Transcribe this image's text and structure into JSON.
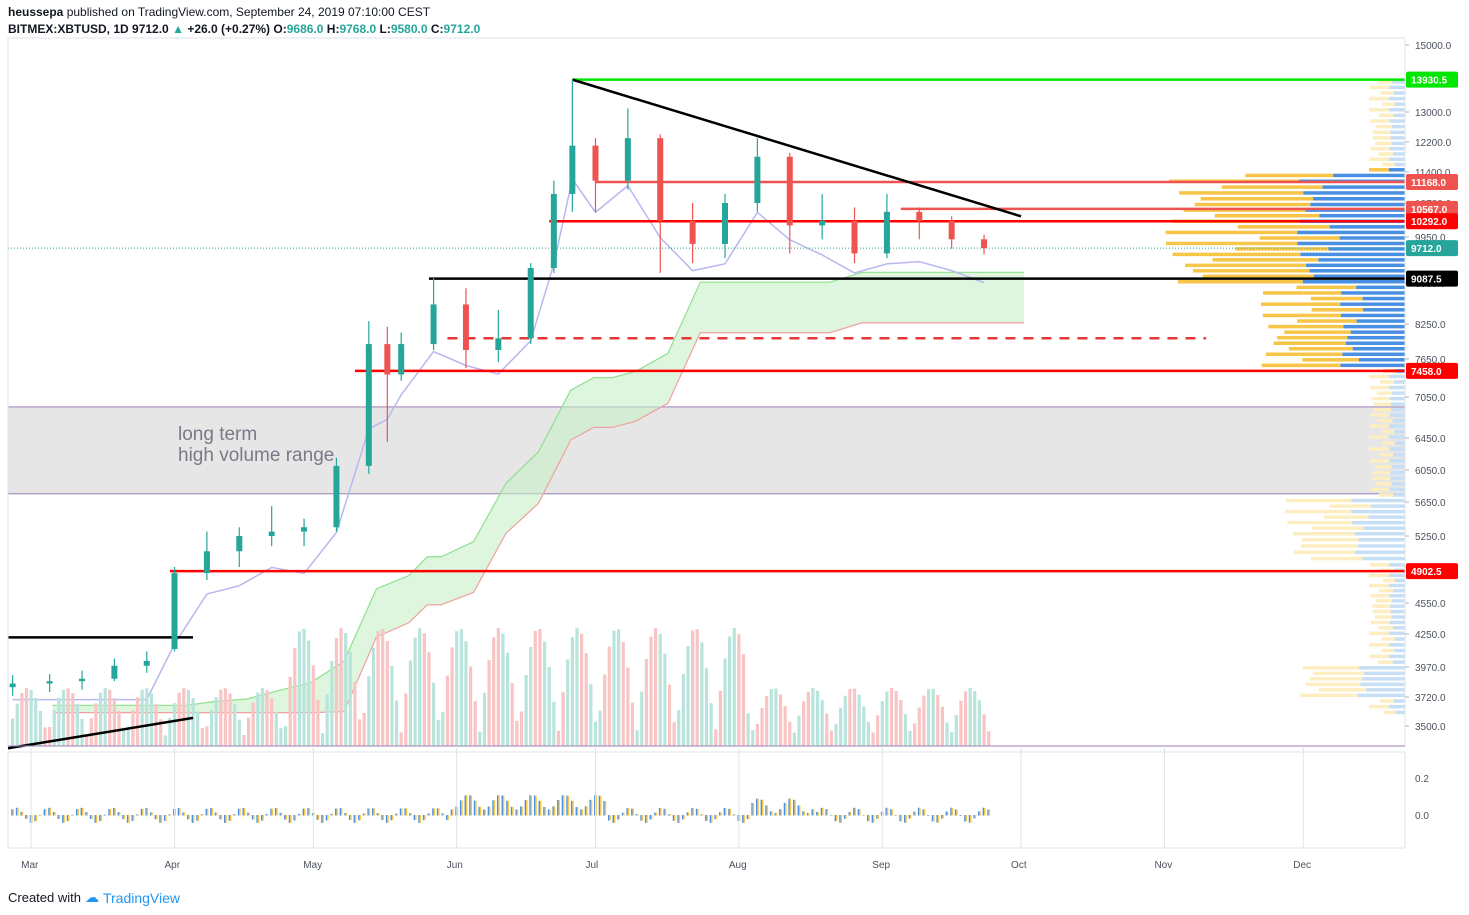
{
  "header": {
    "publisher": "heussepa",
    "published_text": "published on TradingView.com, September 24, 2019 07:10:00 CEST",
    "symbol": "BITMEX:XBTUSD, 1D",
    "last": "9712.0",
    "change": "+26.0 (+0.27%)",
    "open_label": "O:",
    "open": "9686.0",
    "high_label": "H:",
    "high": "9768.0",
    "low_label": "L:",
    "low": "9580.0",
    "close_label": "C:",
    "close": "9712.0"
  },
  "footer": {
    "created_with": "Created with",
    "brand": "TradingView"
  },
  "colors": {
    "bull": "#26a69a",
    "bear": "#ef5350",
    "green_line": "#00e600",
    "red_line": "#ff0000",
    "black_line": "#000000",
    "range_fill": "#e6e6e6",
    "range_border": "#9b7fb4",
    "cloud_green": "#c8eec8",
    "cloud_red": "#ffd6d6",
    "base_line": "#b8b8f0",
    "vp_up": "#f7c548",
    "vp_down": "#4a90e2",
    "osc_up": "#f7c548",
    "osc_down": "#4a90e2"
  },
  "annotations": {
    "range_text_1": "long term",
    "range_text_2": "high volume range"
  },
  "chart_data": {
    "type": "candlestick",
    "x_ticks": [
      "Mar",
      "Apr",
      "May",
      "Jun",
      "Jul",
      "Aug",
      "Sep",
      "Oct",
      "Nov",
      "Dec"
    ],
    "y_ticks": [
      15000,
      13000,
      12200,
      11400,
      10700,
      9950,
      9000,
      8250,
      7650,
      7050,
      6450,
      6050,
      5650,
      5250,
      4950,
      4550,
      4250,
      3970,
      3720,
      3500
    ],
    "y_tick_labels": [
      "15000.0",
      "13000.0",
      "12200.0",
      "11400.0",
      "10700.0",
      "9950.0",
      "9000.0",
      "8250.0",
      "7650.0",
      "7050.0",
      "6450.0",
      "6050.0",
      "5650.0",
      "5250.0",
      "4950.0",
      "4550.0",
      "4250.0",
      "3970.0",
      "3720.0",
      "3500.0"
    ],
    "price_tags": [
      {
        "value": 13930.5,
        "label": "13930.5",
        "color": "#00e600"
      },
      {
        "value": 11168.0,
        "label": "11168.0",
        "color": "#ef5350"
      },
      {
        "value": 10567.0,
        "label": "10567.0",
        "color": "#ef5350"
      },
      {
        "value": 10292.0,
        "label": "10292.0",
        "color": "#ff0000"
      },
      {
        "value": 9712.0,
        "label": "9712.0",
        "color": "#26a69a"
      },
      {
        "value": 9087.5,
        "label": "9087.5",
        "color": "#000000"
      },
      {
        "value": 7458.0,
        "label": "7458.0",
        "color": "#ff0000"
      },
      {
        "value": 4902.5,
        "label": "4902.5",
        "color": "#ff0000"
      }
    ],
    "osc_ticks": [
      0.2,
      0.0
    ],
    "osc_tick_labels": [
      "0.2",
      "0.0"
    ],
    "horizontal_lines": [
      {
        "value": 13930.5,
        "from": "2019-06-26",
        "to": "end",
        "color": "#00e600",
        "style": "solid"
      },
      {
        "value": 11168.0,
        "from": "2019-07-01",
        "to": "end",
        "color": "#ef5350",
        "style": "solid"
      },
      {
        "value": 10567.0,
        "from": "2019-09-05",
        "to": "end",
        "color": "#ef5350",
        "style": "solid"
      },
      {
        "value": 10292.0,
        "from": "2019-06-21",
        "to": "end",
        "color": "#ff0000",
        "style": "solid"
      },
      {
        "value": 9087.5,
        "from": "2019-05-26",
        "to": "end",
        "color": "#000000",
        "style": "solid"
      },
      {
        "value": 8000.0,
        "from": "2019-05-30",
        "to": "2019-11-10",
        "color": "#e53935",
        "style": "dashed"
      },
      {
        "value": 7458.0,
        "from": "2019-05-10",
        "to": "end",
        "color": "#ff0000",
        "style": "solid"
      },
      {
        "value": 4902.5,
        "from": "2019-03-31",
        "to": "end",
        "color": "#ff0000",
        "style": "solid"
      },
      {
        "value": 4220.0,
        "from": "2019-02-24",
        "to": "2019-04-05",
        "color": "#000000",
        "style": "solid"
      }
    ],
    "trend_lines": [
      {
        "from": [
          "2019-06-26",
          13930.5
        ],
        "to": [
          "2019-10-01",
          10400.0
        ],
        "color": "#000000"
      },
      {
        "from": [
          "2019-02-24",
          3340.0
        ],
        "to": [
          "2019-04-05",
          3560.0
        ],
        "color": "#000000"
      }
    ],
    "range_box": {
      "top": 6900,
      "bottom": 5750
    },
    "candles": [
      [
        "2019-02-25",
        3800,
        3900,
        3730,
        3830
      ],
      [
        "2019-03-05",
        3830,
        3910,
        3760,
        3850
      ],
      [
        "2019-03-12",
        3850,
        3940,
        3780,
        3870
      ],
      [
        "2019-03-19",
        3870,
        4040,
        3850,
        3980
      ],
      [
        "2019-03-26",
        3980,
        4100,
        3920,
        4020
      ],
      [
        "2019-04-01",
        4120,
        4950,
        4100,
        4880
      ],
      [
        "2019-04-08",
        4880,
        5300,
        4800,
        5100
      ],
      [
        "2019-04-15",
        5100,
        5350,
        4950,
        5250
      ],
      [
        "2019-04-22",
        5250,
        5600,
        5150,
        5300
      ],
      [
        "2019-04-29",
        5300,
        5450,
        5150,
        5350
      ],
      [
        "2019-05-06",
        5350,
        6200,
        5300,
        6100
      ],
      [
        "2019-05-13",
        6100,
        8300,
        6000,
        7900
      ],
      [
        "2019-05-17",
        7900,
        8200,
        6400,
        7400
      ],
      [
        "2019-05-20",
        7400,
        8100,
        7300,
        7900
      ],
      [
        "2019-05-27",
        7900,
        9100,
        7800,
        8600
      ],
      [
        "2019-06-03",
        8600,
        8900,
        7500,
        7800
      ],
      [
        "2019-06-10",
        7800,
        8500,
        7600,
        8000
      ],
      [
        "2019-06-17",
        8000,
        9400,
        7900,
        9300
      ],
      [
        "2019-06-22",
        9300,
        11200,
        9200,
        10900
      ],
      [
        "2019-06-26",
        10900,
        13930,
        10500,
        12100
      ],
      [
        "2019-07-01",
        12100,
        12300,
        10500,
        11200
      ],
      [
        "2019-07-08",
        11200,
        13100,
        11000,
        12300
      ],
      [
        "2019-07-15",
        12300,
        12400,
        9200,
        10300
      ],
      [
        "2019-07-22",
        10300,
        10700,
        9400,
        9800
      ],
      [
        "2019-07-29",
        9800,
        10900,
        9500,
        10700
      ],
      [
        "2019-08-05",
        10700,
        12300,
        10500,
        11800
      ],
      [
        "2019-08-12",
        11800,
        11900,
        9600,
        10200
      ],
      [
        "2019-08-19",
        10200,
        10900,
        9900,
        10300
      ],
      [
        "2019-08-26",
        10300,
        10600,
        9400,
        9600
      ],
      [
        "2019-09-02",
        9600,
        10900,
        9500,
        10500
      ],
      [
        "2019-09-09",
        10500,
        10600,
        9900,
        10300
      ],
      [
        "2019-09-16",
        10300,
        10400,
        9700,
        9900
      ],
      [
        "2019-09-23",
        9900,
        10000,
        9580,
        9712
      ]
    ]
  }
}
